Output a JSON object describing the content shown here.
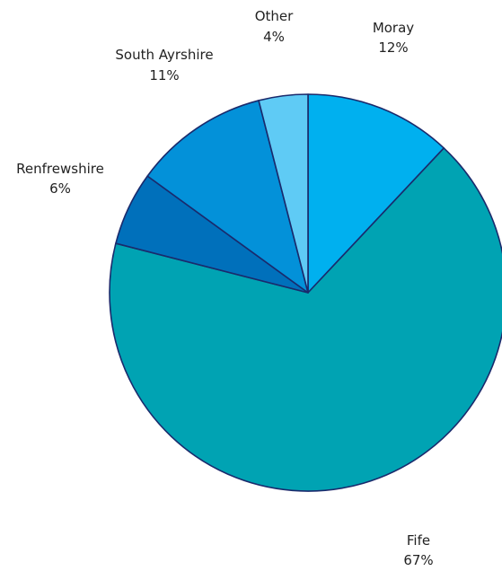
{
  "chart_data": {
    "type": "pie",
    "categories": [
      "Moray",
      "Fife",
      "Renfrewshire",
      "South Ayrshire",
      "Other"
    ],
    "values": [
      12,
      67,
      6,
      11,
      4
    ],
    "value_labels": [
      "12%",
      "67%",
      "6%",
      "11%",
      "4%"
    ],
    "colors": [
      "#00b0ef",
      "#00a3b3",
      "#0070bb",
      "#0391d9",
      "#5fcbf5"
    ],
    "start": "top, clockwise",
    "legend": "none (labels placed beside slices)"
  }
}
